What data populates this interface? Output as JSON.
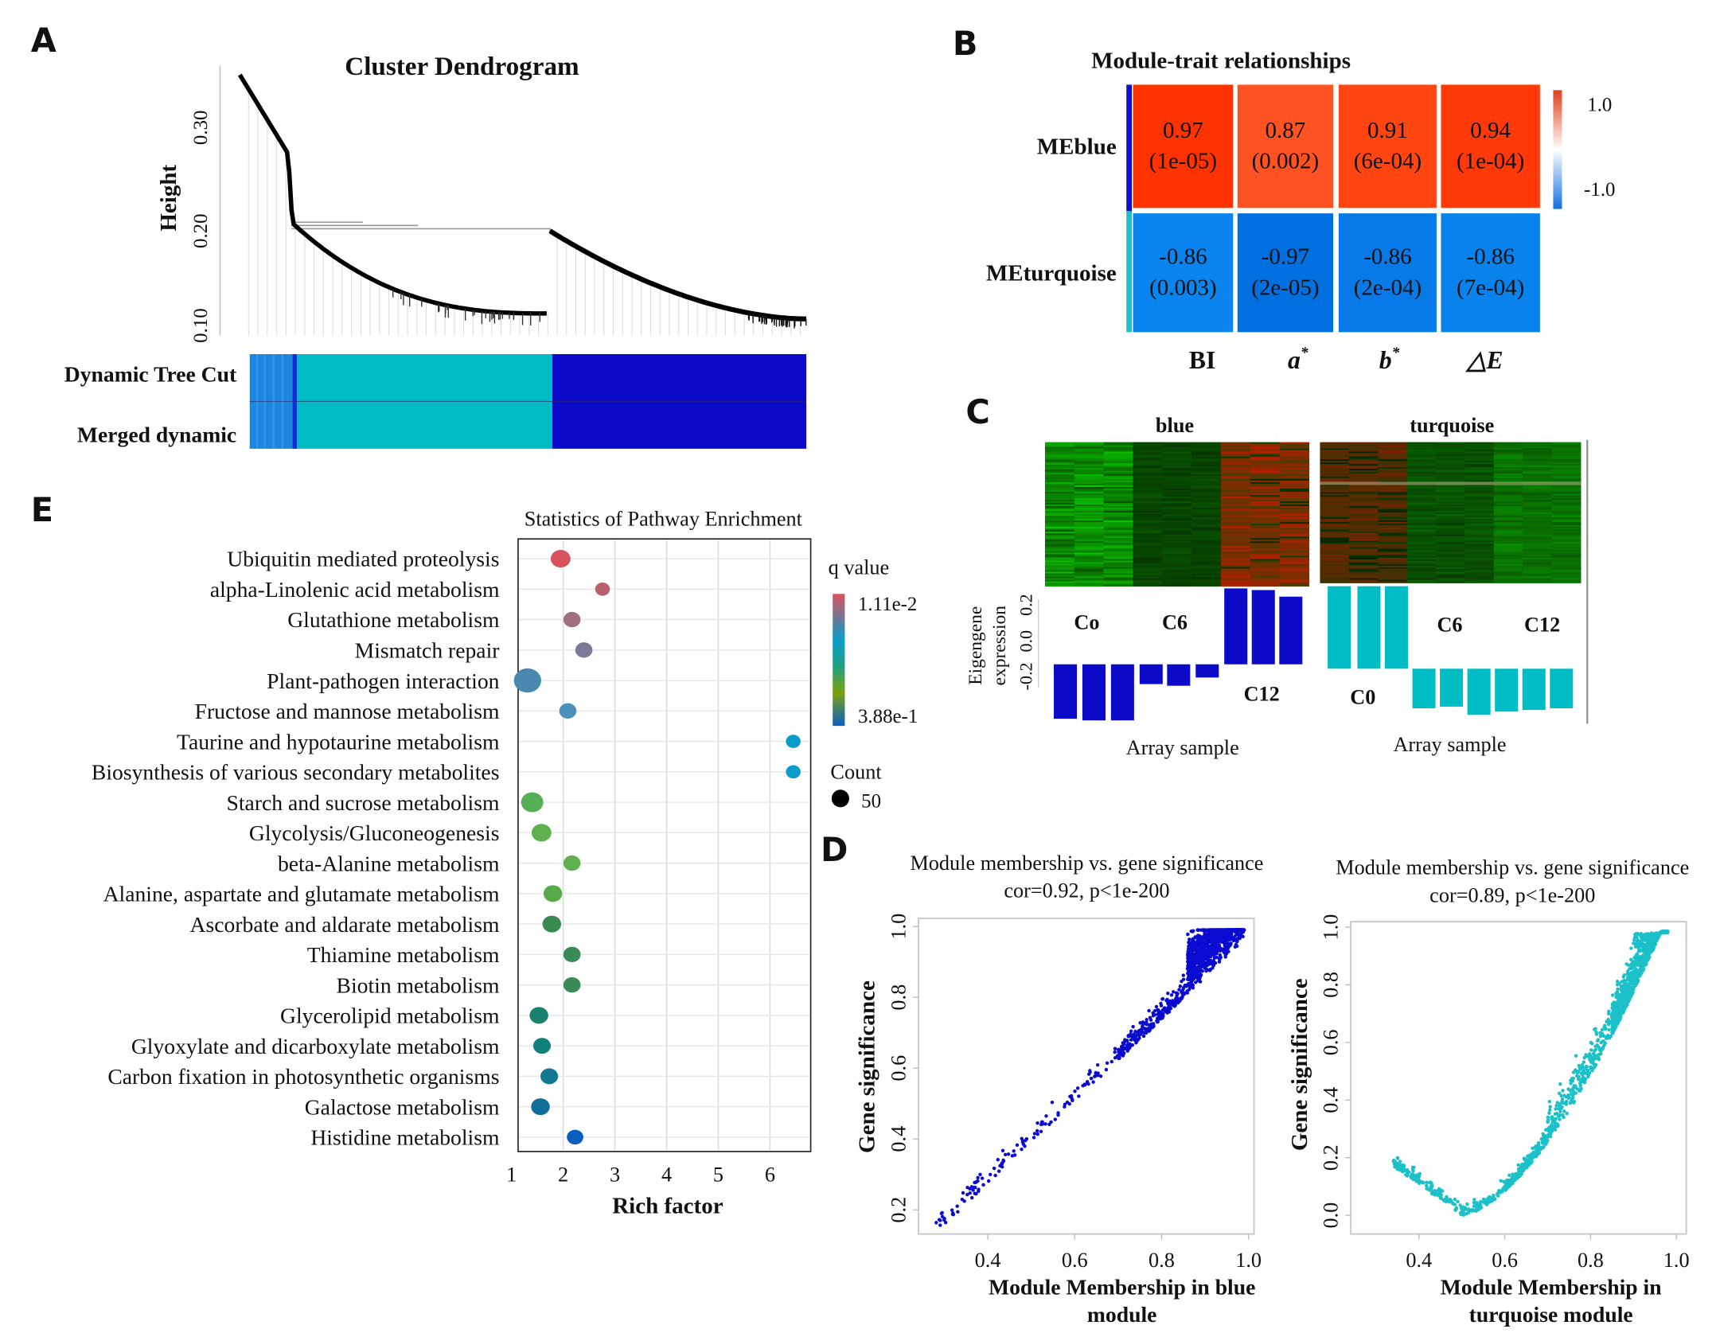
{
  "panels": {
    "A": {
      "letter": "A",
      "title": "Cluster Dendrogram",
      "ylabel": "Height",
      "yticks": [
        "0.30",
        "0.20",
        "0.10"
      ],
      "track_labels": [
        "Dynamic Tree Cut",
        "Merged dynamic"
      ],
      "module_colors": {
        "turquoise": "#00BBC4",
        "blue": "#0A0AC8",
        "grey_blue": "#1F86E0"
      }
    },
    "B": {
      "letter": "B",
      "title": "Module-trait relationships",
      "colorbar_labels": [
        "1.0",
        "-1.0"
      ]
    },
    "C": {
      "letter": "C",
      "ylabel_line1": "Eigengene",
      "ylabel_line2": "expression",
      "yticks": [
        "0.2",
        "0.0",
        "-0.2"
      ]
    },
    "D": {
      "letter": "D"
    },
    "E": {
      "letter": "E"
    }
  },
  "chart_data": [
    {
      "id": "dendrogram",
      "type": "dendrogram",
      "title": "Cluster Dendrogram",
      "ylabel": "Height",
      "ylim": [
        0.09,
        0.36
      ],
      "yticks": [
        0.1,
        0.2,
        0.3
      ],
      "modules": [
        "turquoise",
        "blue"
      ],
      "merge_height": 0.2
    },
    {
      "id": "module-trait",
      "type": "heatmap",
      "title": "Module-trait relationships",
      "rows": [
        "MEblue",
        "MEturquoise"
      ],
      "row_colors": [
        "#1010C8",
        "#1CC0C8"
      ],
      "columns": [
        "BI",
        "a*",
        "b*",
        "△E"
      ],
      "column_labels": [
        {
          "base": "BI",
          "sup": ""
        },
        {
          "base": "a",
          "sup": "*"
        },
        {
          "base": "b",
          "sup": "*"
        },
        {
          "base": "△E",
          "sup": ""
        }
      ],
      "values": [
        [
          0.97,
          0.87,
          0.91,
          0.94
        ],
        [
          -0.86,
          -0.97,
          -0.86,
          -0.86
        ]
      ],
      "pvalues": [
        [
          "(1e-05)",
          "(0.002)",
          "(6e-04)",
          "(1e-04)"
        ],
        [
          "(0.003)",
          "(2e-05)",
          "(2e-04)",
          "(7e-04)"
        ]
      ],
      "value_labels": [
        [
          "0.97",
          "0.87",
          "0.91",
          "0.94"
        ],
        [
          "-0.86",
          "-0.97",
          "-0.86",
          "-0.86"
        ]
      ],
      "cell_colors": [
        [
          "#FF3300",
          "#FF5222",
          "#FF4512",
          "#FF3A08"
        ],
        [
          "#0A84EE",
          "#0070E0",
          "#087AE8",
          "#0982EC"
        ]
      ],
      "colorbar": {
        "min": -1.0,
        "max": 1.0
      }
    },
    {
      "id": "eigengene-blue",
      "type": "bar",
      "title": "blue",
      "xlabel": "Array sample",
      "ylabel": "Eigengene expression",
      "group_labels": [
        "Co",
        "C6",
        "C12"
      ],
      "values": [
        -0.33,
        -0.34,
        -0.34,
        -0.12,
        -0.13,
        -0.08,
        0.46,
        0.45,
        0.41
      ],
      "color": "#0A0AC8"
    },
    {
      "id": "eigengene-turquoise",
      "type": "bar",
      "title": "turquoise",
      "xlabel": "Array sample",
      "group_labels": [
        "C0",
        "C6",
        "C12"
      ],
      "values": [
        0.5,
        0.5,
        0.5,
        -0.24,
        -0.23,
        -0.28,
        -0.26,
        -0.25,
        -0.24
      ],
      "color": "#00BCC4"
    },
    {
      "id": "mm-gs-blue",
      "type": "scatter",
      "title": "Module membership vs. gene significance",
      "subtitle": "cor=0.92, p<1e-200",
      "xlabel_line1": "Module Membership in blue",
      "xlabel_line2": "module",
      "ylabel": "Gene significance",
      "xticks": [
        "0.4",
        "0.6",
        "0.8",
        "1.0"
      ],
      "yticks": [
        "0.2",
        "0.4",
        "0.6",
        "0.8",
        "1.0"
      ],
      "xlim": [
        0.25,
        1.0
      ],
      "ylim": [
        0.15,
        1.0
      ],
      "color": "#0A0AD0"
    },
    {
      "id": "mm-gs-turquoise",
      "type": "scatter",
      "title": "Module membership vs. gene significance",
      "subtitle": "cor=0.89, p<1e-200",
      "xlabel_line1": "Module Membership in",
      "xlabel_line2": "turquoise module",
      "ylabel": "Gene significance",
      "xticks": [
        "0.4",
        "0.6",
        "0.8",
        "1.0"
      ],
      "yticks": [
        "0.0",
        "0.2",
        "0.4",
        "0.6",
        "0.8",
        "1.0"
      ],
      "xlim": [
        0.24,
        1.0
      ],
      "ylim": [
        0.0,
        1.0
      ],
      "color": "#1CC0C8"
    },
    {
      "id": "pathway-enrichment",
      "type": "scatter",
      "title": "Statistics of Pathway Enrichment",
      "xlabel": "Rich factor",
      "xticks": [
        "1",
        "2",
        "3",
        "4",
        "5",
        "6"
      ],
      "xlim": [
        1.0,
        6.8
      ],
      "grid": true,
      "legend": {
        "color_title": "q value",
        "color_max_label": "1.11e-2",
        "color_min_label": "3.88e-1",
        "size_title": "Count",
        "size_label": "50"
      },
      "categories": [
        {
          "name": "Ubiquitin mediated proteolysis",
          "rich": 1.95,
          "count": 50,
          "color": "#D9535F",
          "highlight": false
        },
        {
          "name": "alpha-Linolenic acid metabolism",
          "rich": 2.76,
          "count": 28,
          "color": "#B8606E",
          "highlight": true
        },
        {
          "name": "Glutathione metabolism",
          "rich": 2.17,
          "count": 38,
          "color": "#A07080",
          "highlight": false
        },
        {
          "name": "Mismatch repair",
          "rich": 2.4,
          "count": 38,
          "color": "#7A7A98",
          "highlight": false
        },
        {
          "name": "Plant-pathogen interaction",
          "rich": 1.31,
          "count": 95,
          "color": "#4A88B0",
          "highlight": false
        },
        {
          "name": "Fructose and mannose metabolism",
          "rich": 2.09,
          "count": 38,
          "color": "#4A90B8",
          "highlight": false
        },
        {
          "name": "Taurine and hypotaurine metabolism",
          "rich": 6.45,
          "count": 28,
          "color": "#0A9CC8",
          "highlight": false
        },
        {
          "name": "Biosynthesis of various secondary metabolites",
          "rich": 6.45,
          "count": 28,
          "color": "#0A9CC8",
          "highlight": false
        },
        {
          "name": "Starch and sucrose metabolism",
          "rich": 1.4,
          "count": 63,
          "color": "#55B055",
          "highlight": false
        },
        {
          "name": "Glycolysis/Gluconeogenesis",
          "rich": 1.58,
          "count": 50,
          "color": "#60B050",
          "highlight": false
        },
        {
          "name": "beta-Alanine metabolism",
          "rich": 2.17,
          "count": 38,
          "color": "#60B050",
          "highlight": false
        },
        {
          "name": "Alanine, aspartate and glutamate metabolism",
          "rich": 1.8,
          "count": 45,
          "color": "#58AA48",
          "highlight": false
        },
        {
          "name": "Ascorbate and aldarate metabolism",
          "rich": 1.78,
          "count": 45,
          "color": "#3A8A50",
          "highlight": false
        },
        {
          "name": "Thiamine metabolism",
          "rich": 2.17,
          "count": 38,
          "color": "#3A8A58",
          "highlight": false
        },
        {
          "name": "Biotin metabolism",
          "rich": 2.17,
          "count": 38,
          "color": "#3A8A58",
          "highlight": false
        },
        {
          "name": "Glycerolipid metabolism",
          "rich": 1.53,
          "count": 45,
          "color": "#1A8070",
          "highlight": true
        },
        {
          "name": "Glyoxylate and dicarboxylate metabolism",
          "rich": 1.59,
          "count": 40,
          "color": "#108078",
          "highlight": false
        },
        {
          "name": "Carbon fixation in photosynthetic organisms",
          "rich": 1.73,
          "count": 40,
          "color": "#107890",
          "highlight": false
        },
        {
          "name": "Galactose metabolism",
          "rich": 1.56,
          "count": 45,
          "color": "#106E98",
          "highlight": false
        },
        {
          "name": "Histidine metabolism",
          "rich": 2.23,
          "count": 35,
          "color": "#0A5EC0",
          "highlight": false
        }
      ],
      "highlight_color": "#EE1111"
    }
  ]
}
